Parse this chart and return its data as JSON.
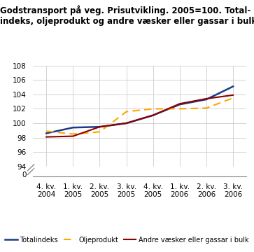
{
  "title": "Godstransport på veg. Prisutvikling. 2005=100. Total-\nindeks, oljeprodukt og andre væsker eller gassar i bulk",
  "x_labels": [
    "4. kv.\n2004",
    "1. kv.\n2005",
    "2. kv.\n2005",
    "3. kv.\n2005",
    "4. kv.\n2005",
    "1. kv.\n2006",
    "2. kv.\n2006",
    "3. kv.\n2006"
  ],
  "totalindeks": [
    98.6,
    99.4,
    99.5,
    100.0,
    101.1,
    102.6,
    103.3,
    105.1
  ],
  "oljeprodukt": [
    98.9,
    98.5,
    98.8,
    101.6,
    102.0,
    102.0,
    102.1,
    103.5
  ],
  "andre_vaesker": [
    98.1,
    98.2,
    99.5,
    100.0,
    101.1,
    102.7,
    103.4,
    103.9
  ],
  "totalindeks_color": "#1a3a8a",
  "oljeprodukt_color": "#FFA500",
  "andre_vaesker_color": "#8B0000",
  "background_color": "#ffffff",
  "grid_color": "#cccccc",
  "legend_labels": [
    "Totalindeks",
    "Oljeprodukt",
    "Andre væsker eller gassar i bulk"
  ]
}
